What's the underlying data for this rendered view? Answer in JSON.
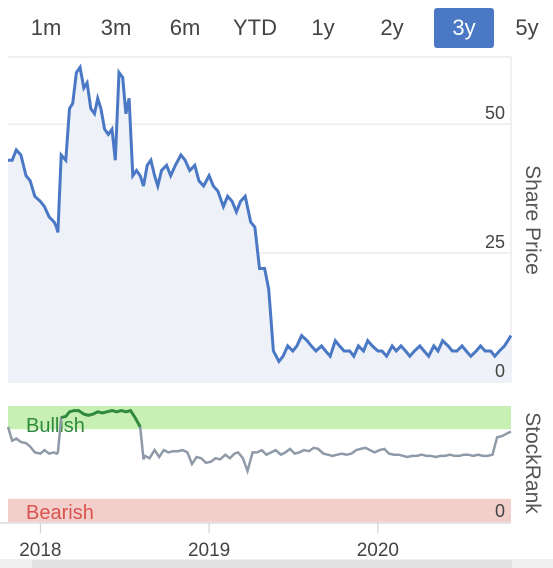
{
  "range_tabs": [
    "1m",
    "3m",
    "6m",
    "YTD",
    "1y",
    "2y",
    "3y",
    "5y"
  ],
  "active_tab": "3y",
  "colors": {
    "price_line": "#4a78c4",
    "price_fill": "#eef1f8",
    "rank_line": "#8f9aa8",
    "bullish_band": "#c8efb4",
    "bullish_line": "#2f8a3c",
    "bearish_band": "#f3cfcb",
    "bullish_text": "#2f8a3c",
    "bearish_text": "#d9534f",
    "active_tab_bg": "#4a78c4"
  },
  "chart_data": [
    {
      "type": "line",
      "name": "share-price-chart",
      "ylabel": "Share Price",
      "ylim": [
        0,
        63
      ],
      "yticks": [
        0,
        25,
        50
      ],
      "grid": true,
      "x_tick_labels": [
        "2018",
        "2019",
        "2020"
      ],
      "x_tick_dates": [
        "2018-01-01",
        "2019-01-01",
        "2020-01-01"
      ],
      "xlim": [
        "2017-10-23",
        "2020-10-15"
      ],
      "series": [
        {
          "x": [
            "2017-10-23",
            "2017-11-01",
            "2017-11-10",
            "2017-11-20",
            "2017-12-01",
            "2017-12-10",
            "2017-12-20",
            "2018-01-01",
            "2018-01-10",
            "2018-01-20",
            "2018-01-31",
            "2018-02-05",
            "2018-02-08",
            "2018-02-15",
            "2018-02-25",
            "2018-03-05",
            "2018-03-12",
            "2018-03-20",
            "2018-03-28",
            "2018-04-05",
            "2018-04-12",
            "2018-04-20",
            "2018-04-28",
            "2018-05-05",
            "2018-05-12",
            "2018-05-20",
            "2018-05-28",
            "2018-06-05",
            "2018-06-12",
            "2018-06-20",
            "2018-06-28",
            "2018-07-05",
            "2018-07-12",
            "2018-07-20",
            "2018-07-28",
            "2018-08-05",
            "2018-08-12",
            "2018-08-20",
            "2018-08-28",
            "2018-09-05",
            "2018-09-12",
            "2018-09-20",
            "2018-10-01",
            "2018-10-10",
            "2018-10-20",
            "2018-11-01",
            "2018-11-10",
            "2018-11-20",
            "2018-12-01",
            "2018-12-10",
            "2018-12-20",
            "2019-01-01",
            "2019-01-10",
            "2019-01-20",
            "2019-02-01",
            "2019-02-10",
            "2019-02-20",
            "2019-03-01",
            "2019-03-10",
            "2019-03-20",
            "2019-04-01",
            "2019-04-10",
            "2019-04-20",
            "2019-05-01",
            "2019-05-10",
            "2019-05-20",
            "2019-06-01",
            "2019-06-10",
            "2019-06-20",
            "2019-07-01",
            "2019-07-10",
            "2019-07-20",
            "2019-08-01",
            "2019-08-10",
            "2019-08-20",
            "2019-09-01",
            "2019-09-10",
            "2019-09-20",
            "2019-10-01",
            "2019-10-10",
            "2019-10-20",
            "2019-11-01",
            "2019-11-10",
            "2019-11-20",
            "2019-12-01",
            "2019-12-10",
            "2019-12-20",
            "2020-01-01",
            "2020-01-10",
            "2020-01-20",
            "2020-02-01",
            "2020-02-10",
            "2020-02-20",
            "2020-03-01",
            "2020-03-10",
            "2020-03-20",
            "2020-04-01",
            "2020-04-10",
            "2020-04-20",
            "2020-05-01",
            "2020-05-10",
            "2020-05-20",
            "2020-06-01",
            "2020-06-10",
            "2020-06-20",
            "2020-07-01",
            "2020-07-10",
            "2020-07-20",
            "2020-08-01",
            "2020-08-10",
            "2020-08-20",
            "2020-09-01",
            "2020-09-10",
            "2020-09-20",
            "2020-10-01",
            "2020-10-15"
          ],
          "values": [
            43,
            43,
            45,
            44,
            40,
            39,
            36,
            35,
            34,
            32,
            31,
            30,
            29,
            44,
            43,
            53,
            54,
            60,
            61,
            57,
            58,
            53,
            52,
            55,
            53,
            49,
            48,
            49,
            43,
            60,
            59,
            52,
            55,
            40,
            41,
            40,
            38,
            42,
            43,
            40,
            38,
            41,
            42,
            40,
            42,
            44,
            43,
            41,
            42,
            39,
            38,
            40,
            38,
            37,
            34,
            36,
            35,
            33,
            35,
            36,
            31,
            30,
            22,
            22,
            18,
            6,
            4,
            5,
            7,
            6,
            7,
            9,
            8,
            7,
            6,
            7,
            6,
            5,
            8,
            7,
            6,
            6,
            5,
            7,
            6,
            8,
            7,
            6,
            6,
            5,
            7,
            6,
            7,
            6,
            5,
            6,
            7,
            6,
            5,
            7,
            6,
            8,
            7,
            6,
            6,
            7,
            6,
            5,
            6,
            7,
            6,
            6,
            5,
            6,
            7,
            9
          ]
        }
      ]
    },
    {
      "type": "line",
      "name": "stockrank-chart",
      "ylabel": "StockRank",
      "ylim": [
        0,
        100
      ],
      "yticks": [
        0
      ],
      "bands": [
        {
          "label": "Bullish",
          "from": 80,
          "to": 100
        },
        {
          "label": "Bearish",
          "from": 0,
          "to": 20
        }
      ],
      "series": [
        {
          "x": [
            "2017-10-23",
            "2017-11-01",
            "2017-11-10",
            "2017-11-20",
            "2017-12-01",
            "2017-12-10",
            "2017-12-20",
            "2018-01-01",
            "2018-01-10",
            "2018-01-20",
            "2018-01-31",
            "2018-02-05",
            "2018-02-08",
            "2018-02-15",
            "2018-02-25",
            "2018-03-05",
            "2018-03-15",
            "2018-03-25",
            "2018-04-05",
            "2018-04-15",
            "2018-04-25",
            "2018-05-05",
            "2018-05-15",
            "2018-05-25",
            "2018-06-05",
            "2018-06-15",
            "2018-06-25",
            "2018-07-05",
            "2018-07-15",
            "2018-07-25",
            "2018-08-05",
            "2018-08-12",
            "2018-08-15",
            "2018-08-25",
            "2018-09-05",
            "2018-09-15",
            "2018-09-25",
            "2018-10-05",
            "2018-10-15",
            "2018-10-25",
            "2018-11-05",
            "2018-11-15",
            "2018-11-25",
            "2018-12-05",
            "2018-12-15",
            "2018-12-25",
            "2019-01-05",
            "2019-01-15",
            "2019-01-25",
            "2019-02-05",
            "2019-02-15",
            "2019-02-25",
            "2019-03-05",
            "2019-03-15",
            "2019-03-25",
            "2019-04-05",
            "2019-04-15",
            "2019-04-25",
            "2019-05-05",
            "2019-05-15",
            "2019-05-25",
            "2019-06-05",
            "2019-06-15",
            "2019-06-25",
            "2019-07-05",
            "2019-07-15",
            "2019-07-25",
            "2019-08-05",
            "2019-08-15",
            "2019-08-25",
            "2019-09-05",
            "2019-09-15",
            "2019-09-25",
            "2019-10-05",
            "2019-10-15",
            "2019-10-25",
            "2019-11-05",
            "2019-11-15",
            "2019-11-25",
            "2019-12-05",
            "2019-12-15",
            "2019-12-25",
            "2020-01-05",
            "2020-01-15",
            "2020-01-25",
            "2020-02-05",
            "2020-02-15",
            "2020-02-25",
            "2020-03-05",
            "2020-03-15",
            "2020-03-25",
            "2020-04-05",
            "2020-04-15",
            "2020-04-25",
            "2020-05-05",
            "2020-05-15",
            "2020-05-25",
            "2020-06-05",
            "2020-06-15",
            "2020-06-25",
            "2020-07-05",
            "2020-07-15",
            "2020-07-25",
            "2020-08-05",
            "2020-08-15",
            "2020-08-25",
            "2020-09-05",
            "2020-09-15",
            "2020-09-25",
            "2020-10-05",
            "2020-10-15"
          ],
          "values": [
            82,
            70,
            72,
            69,
            68,
            65,
            60,
            59,
            62,
            59,
            60,
            59,
            60,
            90,
            91,
            95,
            96,
            96,
            93,
            92,
            93,
            95,
            94,
            95,
            96,
            95,
            96,
            95,
            96,
            90,
            82,
            54,
            57,
            55,
            62,
            56,
            62,
            60,
            61,
            61,
            62,
            60,
            50,
            56,
            55,
            51,
            52,
            55,
            54,
            58,
            55,
            59,
            60,
            55,
            44,
            60,
            60,
            62,
            58,
            60,
            62,
            58,
            60,
            63,
            59,
            60,
            62,
            61,
            64,
            63,
            59,
            58,
            57,
            58,
            59,
            58,
            59,
            62,
            63,
            64,
            62,
            60,
            62,
            63,
            59,
            58,
            58,
            57,
            56,
            57,
            57,
            58,
            57,
            57,
            56,
            57,
            57,
            58,
            57,
            57,
            58,
            58,
            57,
            58,
            57,
            57,
            58,
            73,
            74,
            76,
            78
          ]
        }
      ]
    }
  ]
}
